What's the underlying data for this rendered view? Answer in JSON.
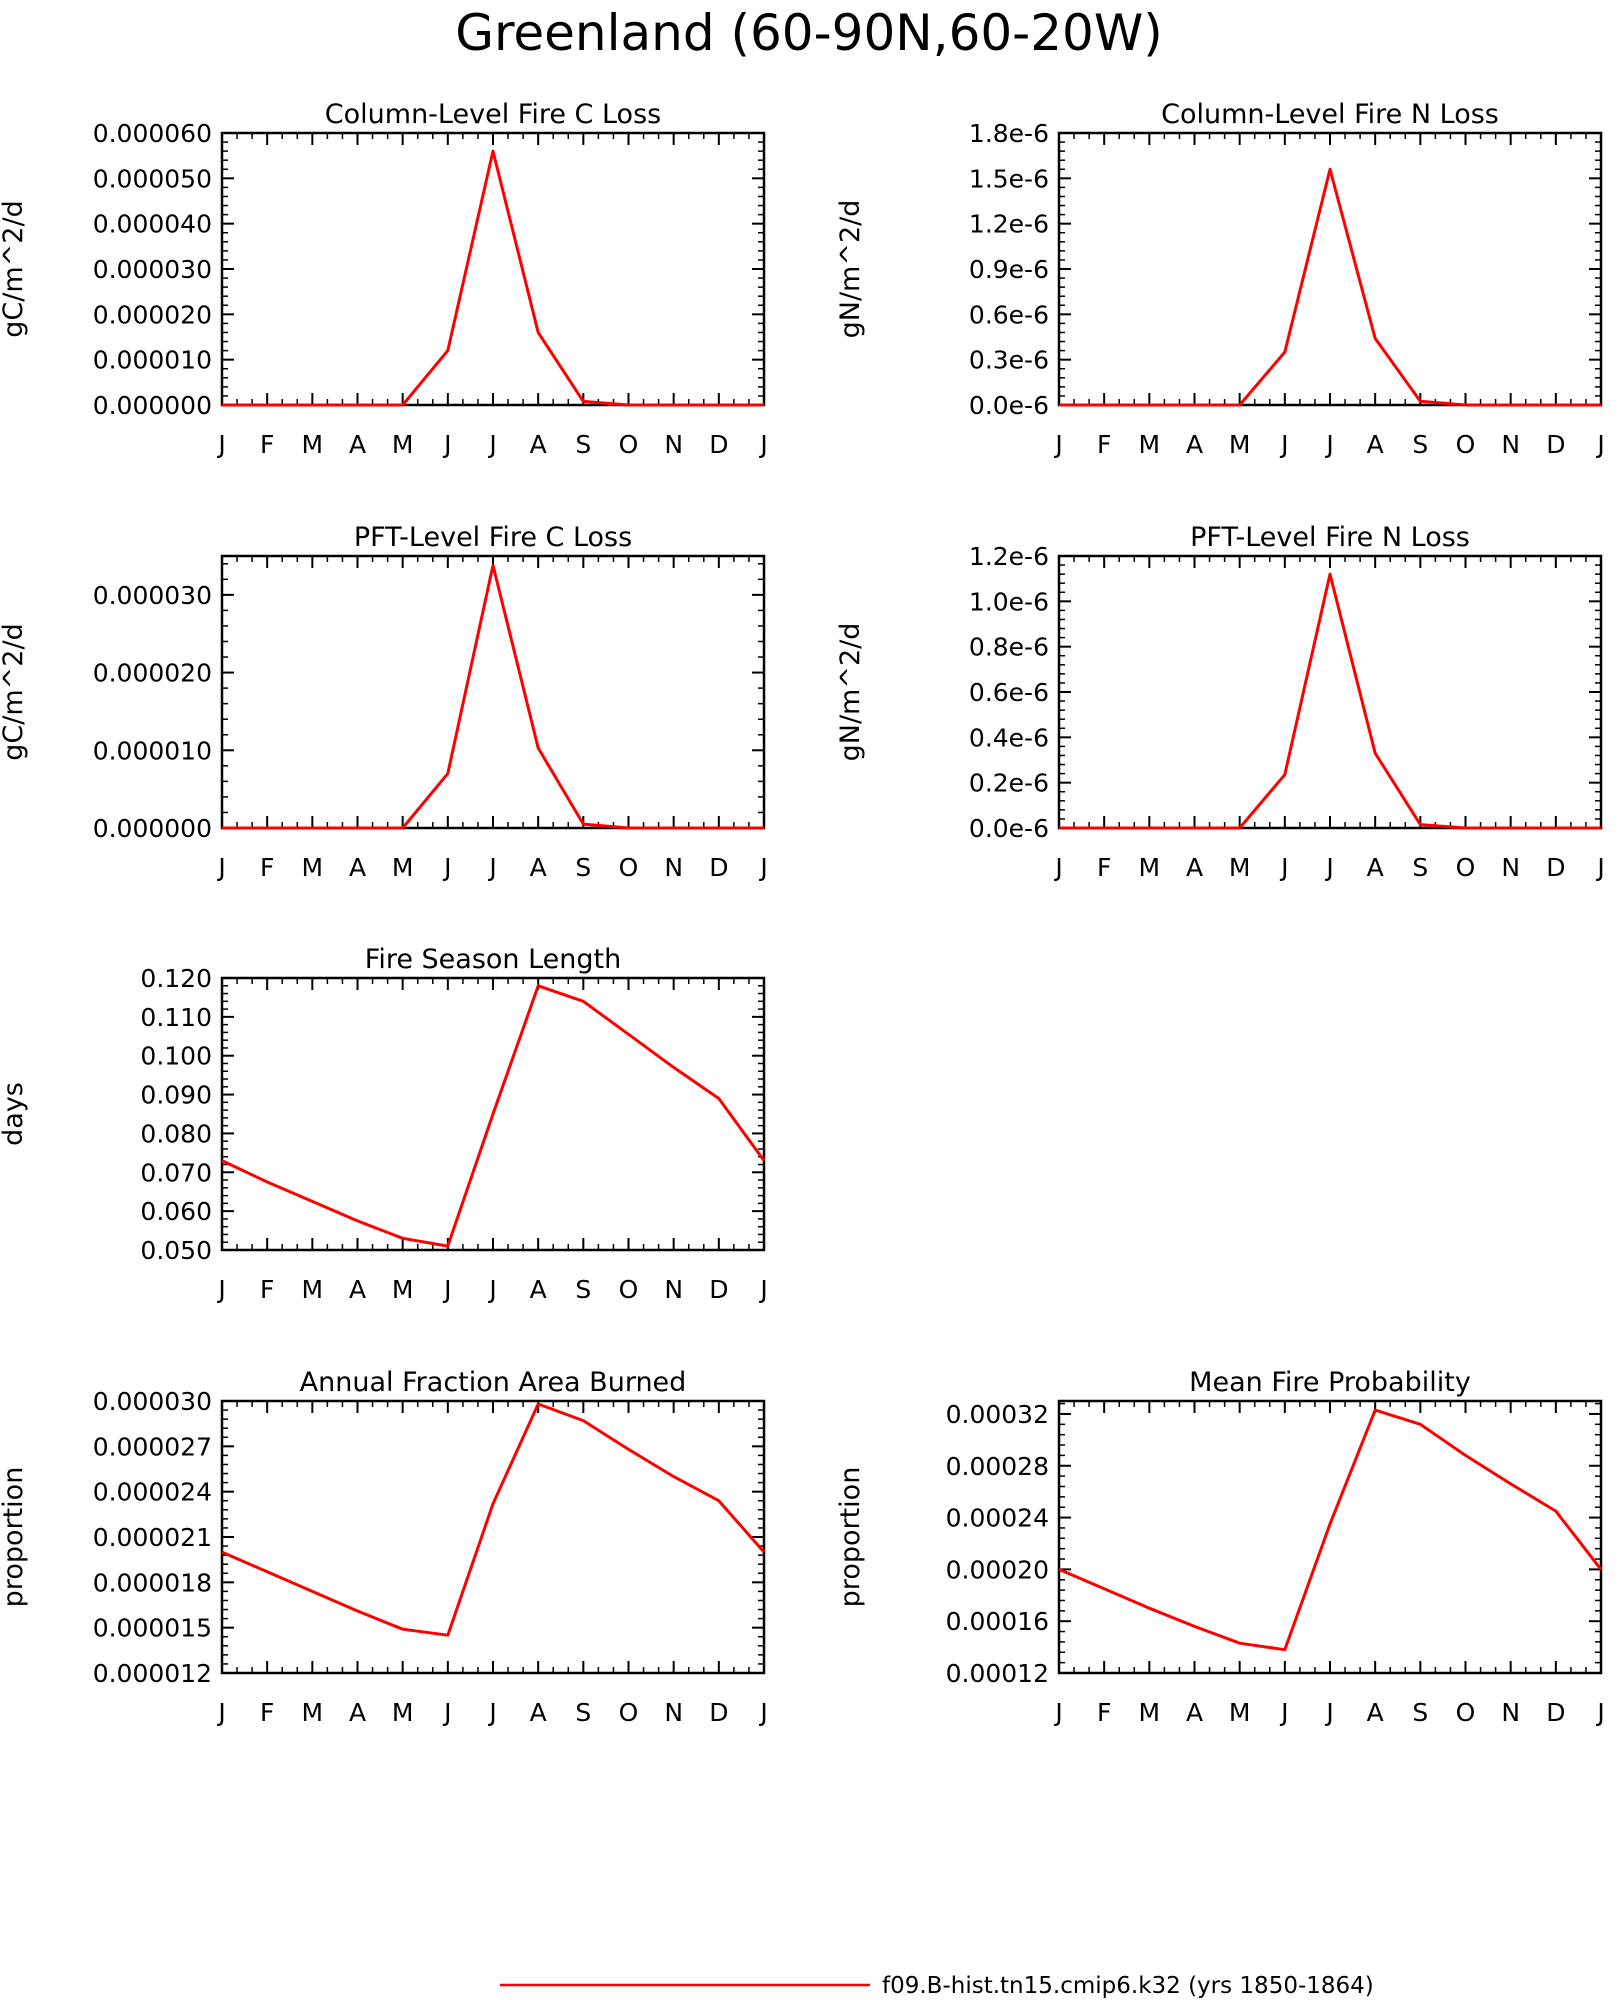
{
  "page_title": "Greenland (60-90N,60-20W)",
  "legend": {
    "label": "f09.B-hist.tn15.cmip6.k32 (yrs 1850-1864)",
    "color": "#ff0000"
  },
  "months": [
    "J",
    "F",
    "M",
    "A",
    "M",
    "J",
    "J",
    "A",
    "S",
    "O",
    "N",
    "D",
    "J"
  ],
  "chart_data": [
    {
      "type": "line",
      "title": "Column-Level Fire C Loss",
      "ylabel": "gC/m^2/d",
      "ylim": [
        0,
        6e-05
      ],
      "yticks": [
        "0.000000",
        "0.000010",
        "0.000020",
        "0.000030",
        "0.000040",
        "0.000050",
        "0.000060"
      ],
      "x": [
        "J",
        "F",
        "M",
        "A",
        "M",
        "J",
        "J",
        "A",
        "S",
        "O",
        "N",
        "D",
        "J"
      ],
      "series": [
        {
          "values": [
            0,
            0,
            0,
            0,
            0,
            1.2e-05,
            5.6e-05,
            1.6e-05,
            8e-07,
            0,
            0,
            0,
            0
          ],
          "color": "#ff0000"
        }
      ]
    },
    {
      "type": "line",
      "title": "Column-Level Fire N Loss",
      "ylabel": "gN/m^2/d",
      "ylim": [
        0,
        1.8e-06
      ],
      "yticks": [
        "0.0e-6",
        "0.3e-6",
        "0.6e-6",
        "0.9e-6",
        "1.2e-6",
        "1.5e-6",
        "1.8e-6"
      ],
      "x": [
        "J",
        "F",
        "M",
        "A",
        "M",
        "J",
        "J",
        "A",
        "S",
        "O",
        "N",
        "D",
        "J"
      ],
      "series": [
        {
          "values": [
            0,
            0,
            0,
            0,
            0,
            3.5e-07,
            1.56e-06,
            4.4e-07,
            2.5e-08,
            0,
            0,
            0,
            0
          ],
          "color": "#ff0000"
        }
      ]
    },
    {
      "type": "line",
      "title": "PFT-Level Fire C Loss",
      "ylabel": "gC/m^2/d",
      "ylim": [
        0,
        3.5e-05
      ],
      "yticks": [
        "0.000000",
        "0.000010",
        "0.000020",
        "0.000030"
      ],
      "x": [
        "J",
        "F",
        "M",
        "A",
        "M",
        "J",
        "J",
        "A",
        "S",
        "O",
        "N",
        "D",
        "J"
      ],
      "series": [
        {
          "values": [
            0,
            0,
            0,
            0,
            0,
            7e-06,
            3.38e-05,
            1.03e-05,
            5e-07,
            0,
            0,
            0,
            0
          ],
          "color": "#ff0000"
        }
      ]
    },
    {
      "type": "line",
      "title": "PFT-Level Fire N Loss",
      "ylabel": "gN/m^2/d",
      "ylim": [
        0,
        1.2e-06
      ],
      "yticks": [
        "0.0e-6",
        "0.2e-6",
        "0.4e-6",
        "0.6e-6",
        "0.8e-6",
        "1.0e-6",
        "1.2e-6"
      ],
      "x": [
        "J",
        "F",
        "M",
        "A",
        "M",
        "J",
        "J",
        "A",
        "S",
        "O",
        "N",
        "D",
        "J"
      ],
      "series": [
        {
          "values": [
            0,
            0,
            0,
            0,
            0,
            2.35e-07,
            1.12e-06,
            3.3e-07,
            1.5e-08,
            0,
            0,
            0,
            0
          ],
          "color": "#ff0000"
        }
      ]
    },
    {
      "type": "line",
      "title": "Fire Season Length",
      "ylabel": "days",
      "ylim": [
        0.05,
        0.12
      ],
      "yticks": [
        "0.050",
        "0.060",
        "0.070",
        "0.080",
        "0.090",
        "0.100",
        "0.110",
        "0.120"
      ],
      "x": [
        "J",
        "F",
        "M",
        "A",
        "M",
        "J",
        "J",
        "A",
        "S",
        "O",
        "N",
        "D",
        "J"
      ],
      "series": [
        {
          "values": [
            0.073,
            0.0675,
            0.0625,
            0.0575,
            0.053,
            0.051,
            0.085,
            0.118,
            0.114,
            0.1055,
            0.097,
            0.089,
            0.073
          ],
          "color": "#ff0000"
        }
      ]
    },
    {
      "type": "line",
      "title": "Annual Fraction Area Burned",
      "ylabel": "proportion",
      "ylim": [
        1.2e-05,
        3e-05
      ],
      "yticks": [
        "0.000012",
        "0.000015",
        "0.000018",
        "0.000021",
        "0.000024",
        "0.000027",
        "0.000030"
      ],
      "x": [
        "J",
        "F",
        "M",
        "A",
        "M",
        "J",
        "J",
        "A",
        "S",
        "O",
        "N",
        "D",
        "J"
      ],
      "series": [
        {
          "values": [
            2e-05,
            1.87e-05,
            1.74e-05,
            1.61e-05,
            1.49e-05,
            1.45e-05,
            2.32e-05,
            2.98e-05,
            2.87e-05,
            2.68e-05,
            2.5e-05,
            2.34e-05,
            2e-05
          ],
          "color": "#ff0000"
        }
      ]
    },
    {
      "type": "line",
      "title": "Mean Fire Probability",
      "ylabel": "proportion",
      "ylim": [
        0.00012,
        0.00033
      ],
      "yticks": [
        "0.00012",
        "0.00016",
        "0.00020",
        "0.00024",
        "0.00028",
        "0.00032"
      ],
      "x": [
        "J",
        "F",
        "M",
        "A",
        "M",
        "J",
        "J",
        "A",
        "S",
        "O",
        "N",
        "D",
        "J"
      ],
      "series": [
        {
          "values": [
            0.0002,
            0.000185,
            0.00017,
            0.000156,
            0.000143,
            0.000138,
            0.000235,
            0.000323,
            0.000312,
            0.000288,
            0.000266,
            0.000245,
            0.0002
          ],
          "color": "#ff0000"
        }
      ]
    }
  ]
}
